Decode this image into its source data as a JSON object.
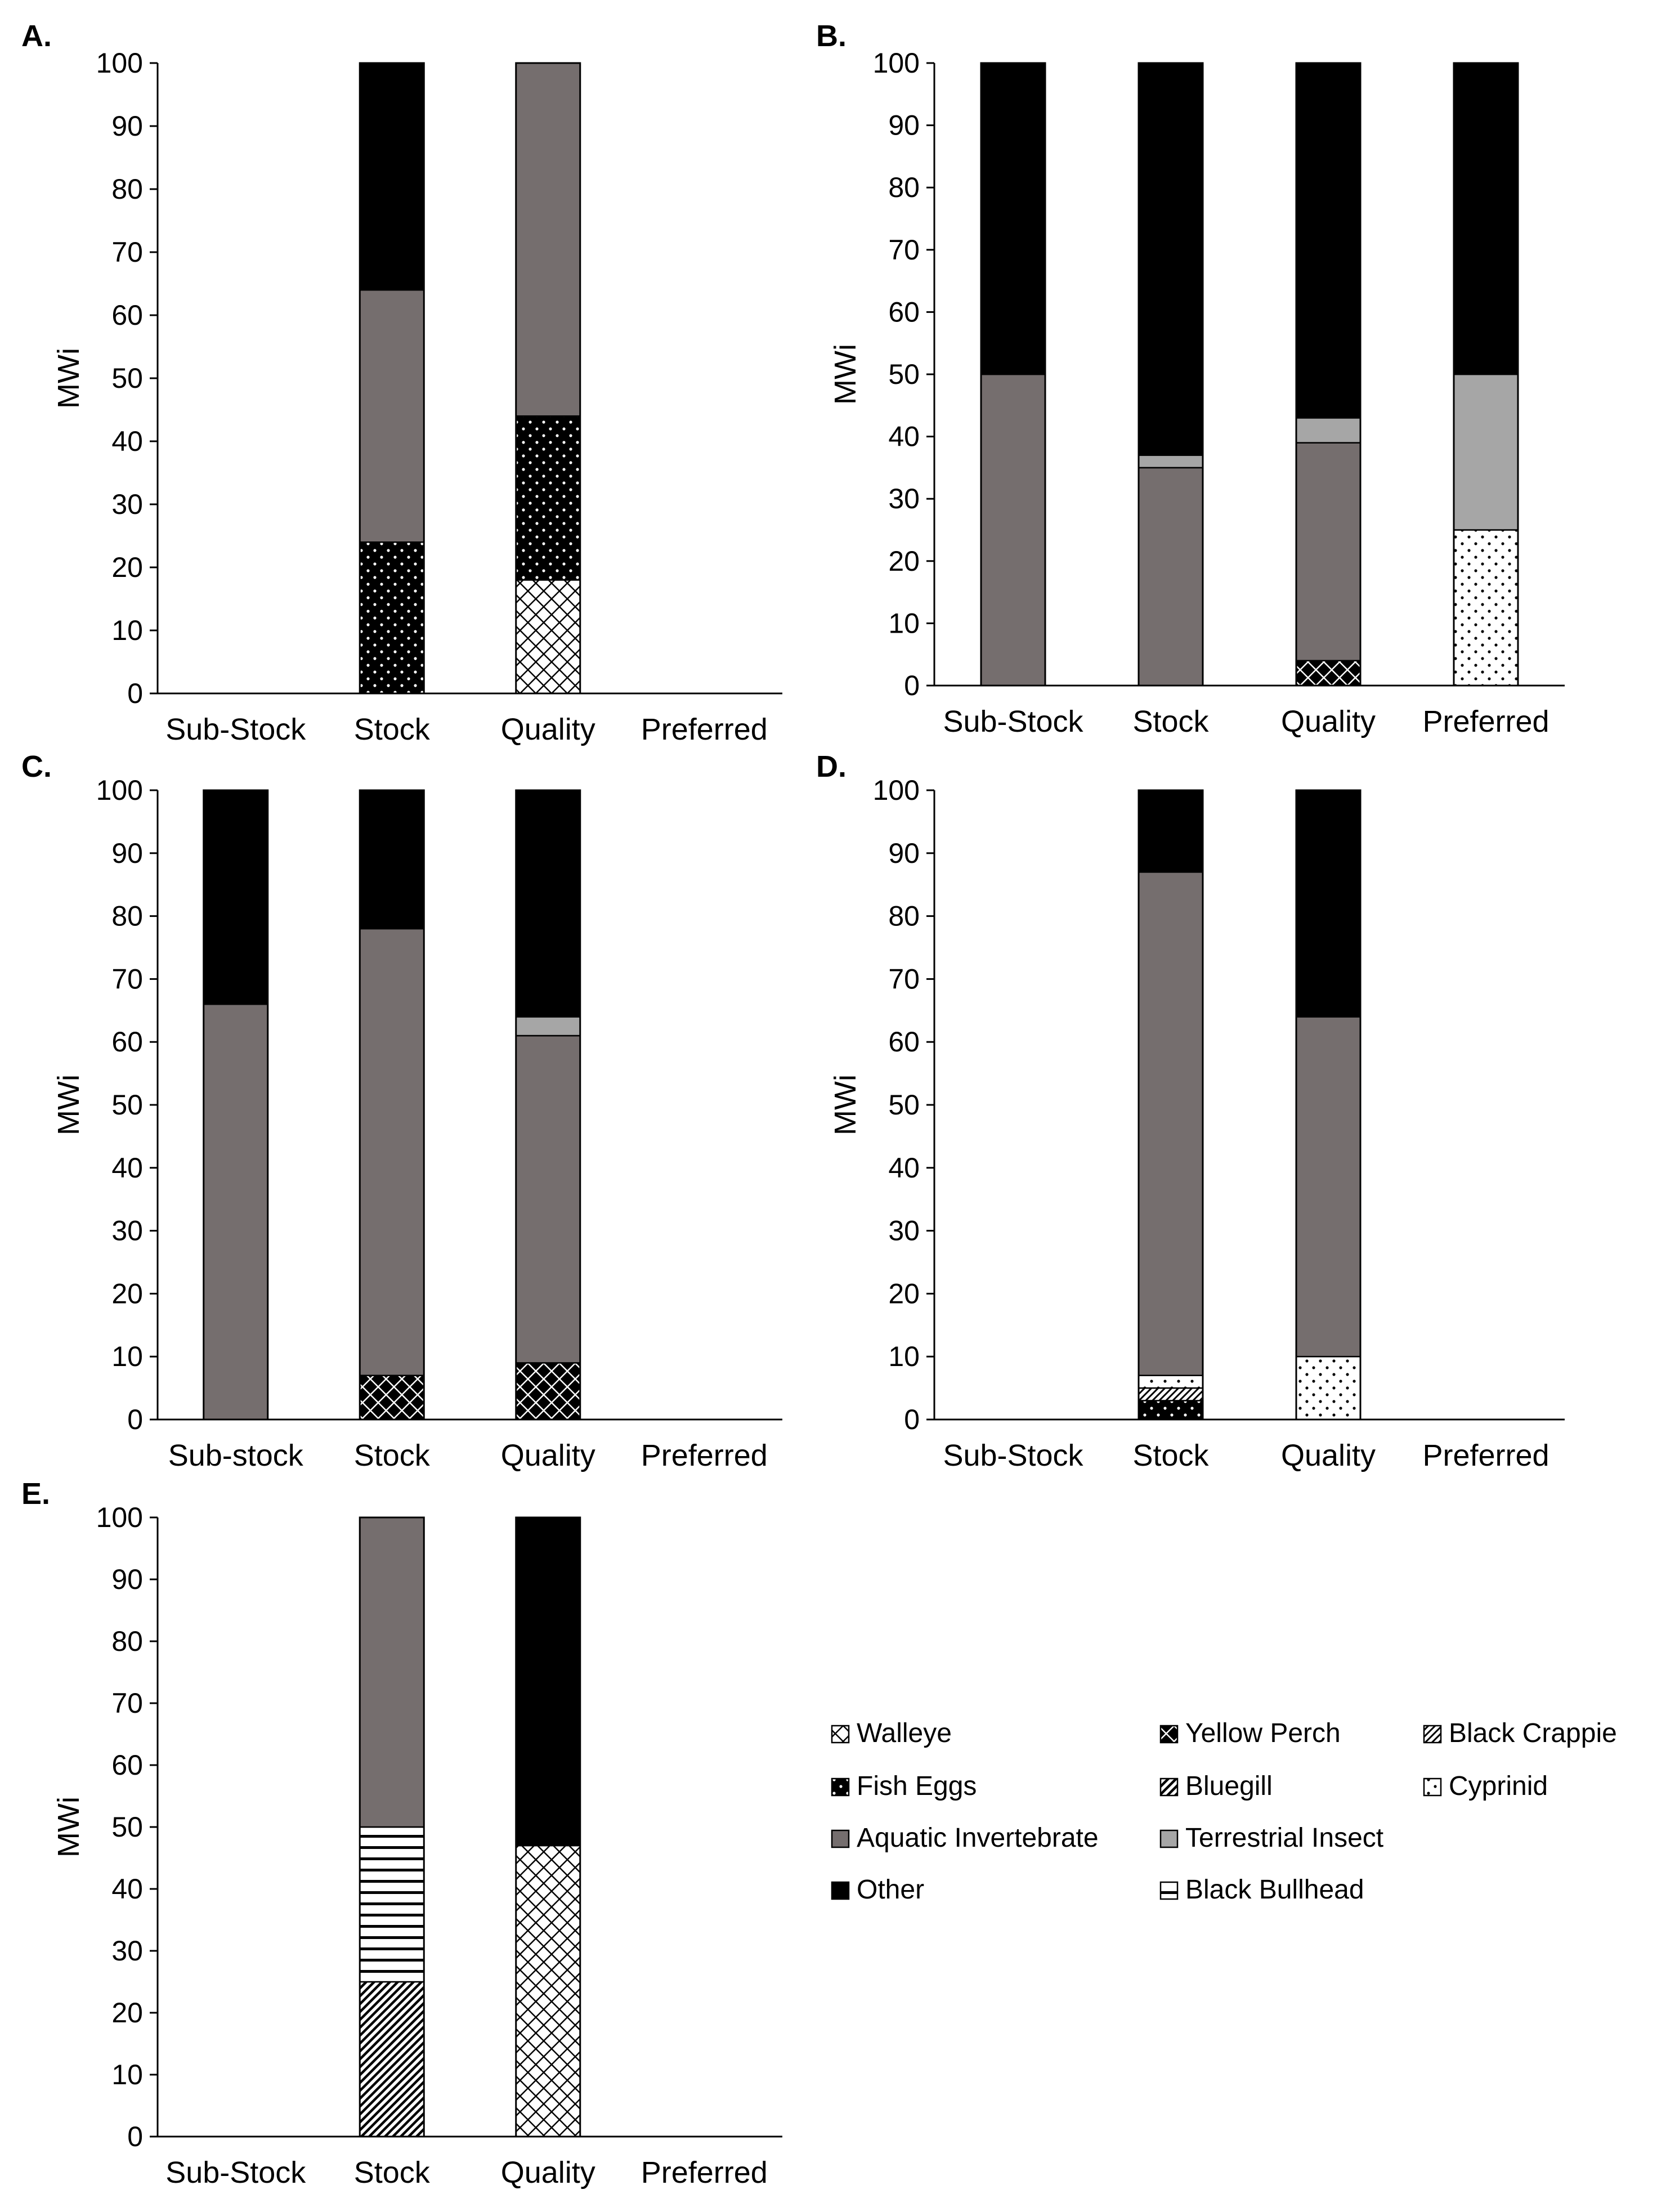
{
  "colors": {
    "Walleye": "#ffffff",
    "Yellow Perch": "#000000",
    "Black Crappie": "#ffffff",
    "Fish Eggs": "#000000",
    "Bluegill": "#ffffff",
    "Cyprinid": "#ffffff",
    "Aquatic Invertebrate": "#756e6e",
    "Terrestrial Insect": "#a6a6a6",
    "Other": "#000000",
    "Black Bullhead": "#ffffff"
  },
  "legend": {
    "items": [
      {
        "label": "Walleye",
        "icon": "walleye-crosshatch-swatch-icon"
      },
      {
        "label": "Yellow Perch",
        "icon": "yellow-perch-dark-crosshatch-swatch-icon"
      },
      {
        "label": "Black Crappie",
        "icon": "black-crappie-diagonal-stripe-swatch-icon"
      },
      {
        "label": "Fish Eggs",
        "icon": "fish-eggs-dotted-black-swatch-icon"
      },
      {
        "label": "Bluegill",
        "icon": "bluegill-dense-diagonal-swatch-icon"
      },
      {
        "label": "Cyprinid",
        "icon": "cyprinid-dotted-white-swatch-icon"
      },
      {
        "label": "Aquatic Invertebrate",
        "icon": "aquatic-invertebrate-dark-gray-swatch-icon"
      },
      {
        "label": "Terrestrial Insect",
        "icon": "terrestrial-insect-light-gray-swatch-icon"
      },
      {
        "label": "Other",
        "icon": "other-black-swatch-icon"
      },
      {
        "label": "Black Bullhead",
        "icon": "black-bullhead-horizontal-stripe-swatch-icon"
      }
    ]
  },
  "chart_data": [
    {
      "panel": "A.",
      "type": "bar",
      "stacked": true,
      "ylabel": "MWi",
      "xlabel": "",
      "ylim": [
        0,
        100
      ],
      "yticks": [
        0,
        10,
        20,
        30,
        40,
        50,
        60,
        70,
        80,
        90,
        100
      ],
      "categories": [
        "Sub-Stock",
        "Stock",
        "Quality",
        "Preferred"
      ],
      "series": [
        {
          "name": "Walleye",
          "values": [
            0,
            0,
            18,
            0
          ]
        },
        {
          "name": "Fish Eggs",
          "values": [
            0,
            24,
            26,
            0
          ]
        },
        {
          "name": "Aquatic Invertebrate",
          "values": [
            0,
            40,
            56,
            0
          ]
        },
        {
          "name": "Other",
          "values": [
            0,
            36,
            0,
            0
          ]
        }
      ]
    },
    {
      "panel": "B.",
      "type": "bar",
      "stacked": true,
      "ylabel": "MWi",
      "xlabel": "",
      "ylim": [
        0,
        100
      ],
      "yticks": [
        0,
        10,
        20,
        30,
        40,
        50,
        60,
        70,
        80,
        90,
        100
      ],
      "categories": [
        "Sub-Stock",
        "Stock",
        "Quality",
        "Preferred"
      ],
      "series": [
        {
          "name": "Yellow Perch",
          "values": [
            0,
            0,
            4,
            0
          ]
        },
        {
          "name": "Cyprinid",
          "values": [
            0,
            0,
            0,
            25
          ]
        },
        {
          "name": "Aquatic Invertebrate",
          "values": [
            50,
            35,
            35,
            0
          ]
        },
        {
          "name": "Terrestrial Insect",
          "values": [
            0,
            2,
            4,
            25
          ]
        },
        {
          "name": "Other",
          "values": [
            50,
            63,
            57,
            50
          ]
        }
      ]
    },
    {
      "panel": "C.",
      "type": "bar",
      "stacked": true,
      "ylabel": "MWi",
      "xlabel": "",
      "ylim": [
        0,
        100
      ],
      "yticks": [
        0,
        10,
        20,
        30,
        40,
        50,
        60,
        70,
        80,
        90,
        100
      ],
      "categories": [
        "Sub-stock",
        "Stock",
        "Quality",
        "Preferred"
      ],
      "series": [
        {
          "name": "Yellow Perch",
          "values": [
            0,
            7,
            9,
            0
          ]
        },
        {
          "name": "Aquatic Invertebrate",
          "values": [
            66,
            71,
            52,
            0
          ]
        },
        {
          "name": "Terrestrial Insect",
          "values": [
            0,
            0,
            3,
            0
          ]
        },
        {
          "name": "Other",
          "values": [
            34,
            22,
            36,
            0
          ]
        }
      ]
    },
    {
      "panel": "D.",
      "type": "bar",
      "stacked": true,
      "ylabel": "MWi",
      "xlabel": "",
      "ylim": [
        0,
        100
      ],
      "yticks": [
        0,
        10,
        20,
        30,
        40,
        50,
        60,
        70,
        80,
        90,
        100
      ],
      "categories": [
        "Sub-Stock",
        "Stock",
        "Quality",
        "Preferred"
      ],
      "series": [
        {
          "name": "Fish Eggs",
          "values": [
            0,
            3,
            0,
            0
          ]
        },
        {
          "name": "Black Crappie",
          "values": [
            0,
            2,
            0,
            0
          ]
        },
        {
          "name": "Cyprinid",
          "values": [
            0,
            2,
            10,
            0
          ]
        },
        {
          "name": "Aquatic Invertebrate",
          "values": [
            0,
            80,
            54,
            0
          ]
        },
        {
          "name": "Other",
          "values": [
            0,
            13,
            36,
            0
          ]
        }
      ]
    },
    {
      "panel": "E.",
      "type": "bar",
      "stacked": true,
      "ylabel": "MWi",
      "xlabel": "",
      "ylim": [
        0,
        100
      ],
      "yticks": [
        0,
        10,
        20,
        30,
        40,
        50,
        60,
        70,
        80,
        90,
        100
      ],
      "categories": [
        "Sub-Stock",
        "Stock",
        "Quality",
        "Preferred"
      ],
      "series": [
        {
          "name": "Walleye",
          "values": [
            0,
            0,
            47,
            0
          ]
        },
        {
          "name": "Bluegill",
          "values": [
            0,
            25,
            0,
            0
          ]
        },
        {
          "name": "Black Bullhead",
          "values": [
            0,
            25,
            0,
            0
          ]
        },
        {
          "name": "Aquatic Invertebrate",
          "values": [
            0,
            50,
            0,
            0
          ]
        },
        {
          "name": "Other",
          "values": [
            0,
            0,
            53,
            0
          ]
        }
      ]
    }
  ]
}
